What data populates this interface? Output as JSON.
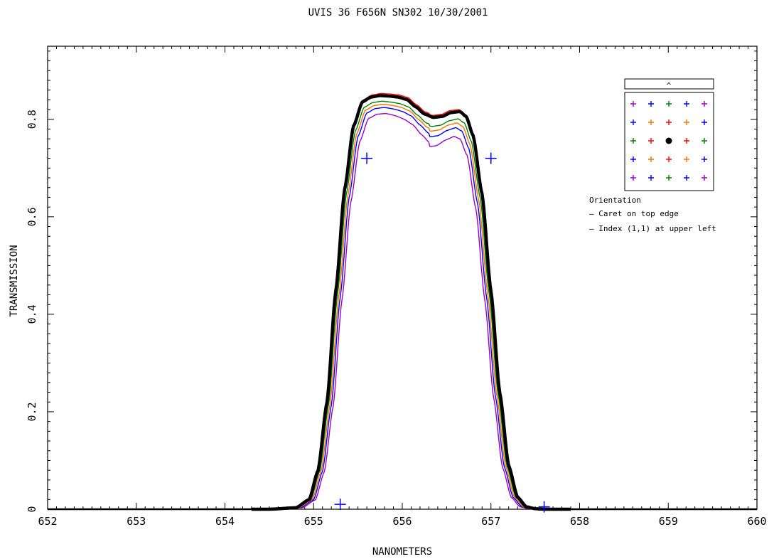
{
  "chart_data": {
    "type": "line",
    "title": "UVIS 36 F656N SN302    10/30/2001",
    "xlabel": "NANOMETERS",
    "ylabel": "TRANSMISSION",
    "xlim": [
      652,
      660
    ],
    "ylim": [
      0,
      0.95
    ],
    "xticks": [
      652,
      653,
      654,
      655,
      656,
      657,
      658,
      659,
      660
    ],
    "xtick_labels": [
      "652",
      "653",
      "654",
      "655",
      "656",
      "657",
      "658",
      "659",
      "660"
    ],
    "yticks": [
      0,
      0.2,
      0.4,
      0.6,
      0.8
    ],
    "ytick_labels": [
      "0",
      "0.2",
      "0.4",
      "0.6",
      "0.8"
    ],
    "grid": false,
    "base_curve": {
      "x": [
        652,
        654.5,
        654.8,
        654.95,
        655.05,
        655.15,
        655.25,
        655.35,
        655.45,
        655.55,
        655.65,
        655.75,
        655.85,
        655.95,
        656.05,
        656.15,
        656.25,
        656.35,
        656.45,
        656.55,
        656.65,
        656.72,
        656.8,
        656.9,
        657.0,
        657.1,
        657.2,
        657.3,
        657.4,
        657.5,
        657.6,
        660
      ],
      "y": [
        0,
        0,
        0.003,
        0.02,
        0.08,
        0.22,
        0.45,
        0.66,
        0.79,
        0.84,
        0.85,
        0.853,
        0.852,
        0.85,
        0.845,
        0.83,
        0.815,
        0.808,
        0.81,
        0.818,
        0.82,
        0.81,
        0.77,
        0.65,
        0.45,
        0.24,
        0.09,
        0.025,
        0.005,
        0.001,
        0,
        0
      ]
    },
    "series": [
      {
        "color": "#9a00d0",
        "dx": 0.07,
        "scale": 0.955,
        "mid_dip": 0.028
      },
      {
        "color": "#0000ff",
        "dx": 0.05,
        "scale": 0.968,
        "mid_dip": 0.018
      },
      {
        "color": "#ff7000",
        "dx": 0.035,
        "scale": 0.975,
        "mid_dip": 0.012
      },
      {
        "color": "#008000",
        "dx": 0.02,
        "scale": 0.982,
        "mid_dip": 0.008
      },
      {
        "color": "#ff0000",
        "dx": 0.01,
        "scale": 1.0,
        "mid_dip": 0.0
      },
      {
        "color": "#000000",
        "dx": 0.0,
        "scale": 0.995,
        "mid_dip": 0.0,
        "bold": true
      }
    ],
    "markers": [
      {
        "x": 655.3,
        "y": 0.01,
        "color": "#0000ff"
      },
      {
        "x": 655.6,
        "y": 0.72,
        "color": "#0000ff"
      },
      {
        "x": 657.0,
        "y": 0.72,
        "color": "#0000ff"
      },
      {
        "x": 657.6,
        "y": 0.005,
        "color": "#0000ff"
      }
    ]
  },
  "inset": {
    "caret_symbol": "^",
    "grid": [
      [
        "#a000d0",
        "#0000ff",
        "#008000",
        "#0000ff",
        "#a000d0"
      ],
      [
        "#0000ff",
        "#ff7000",
        "#ff0000",
        "#ff7000",
        "#0000ff"
      ],
      [
        "#008000",
        "#ff0000",
        "dot",
        "#ff0000",
        "#008000"
      ],
      [
        "#0000ff",
        "#ff7000",
        "#ff0000",
        "#ff7000",
        "#0000ff"
      ],
      [
        "#a000d0",
        "#0000ff",
        "#008000",
        "#0000ff",
        "#a000d0"
      ]
    ]
  },
  "orientation": {
    "heading": "Orientation",
    "line1": "— Caret on top edge",
    "line2": "— Index (1,1) at upper left"
  }
}
